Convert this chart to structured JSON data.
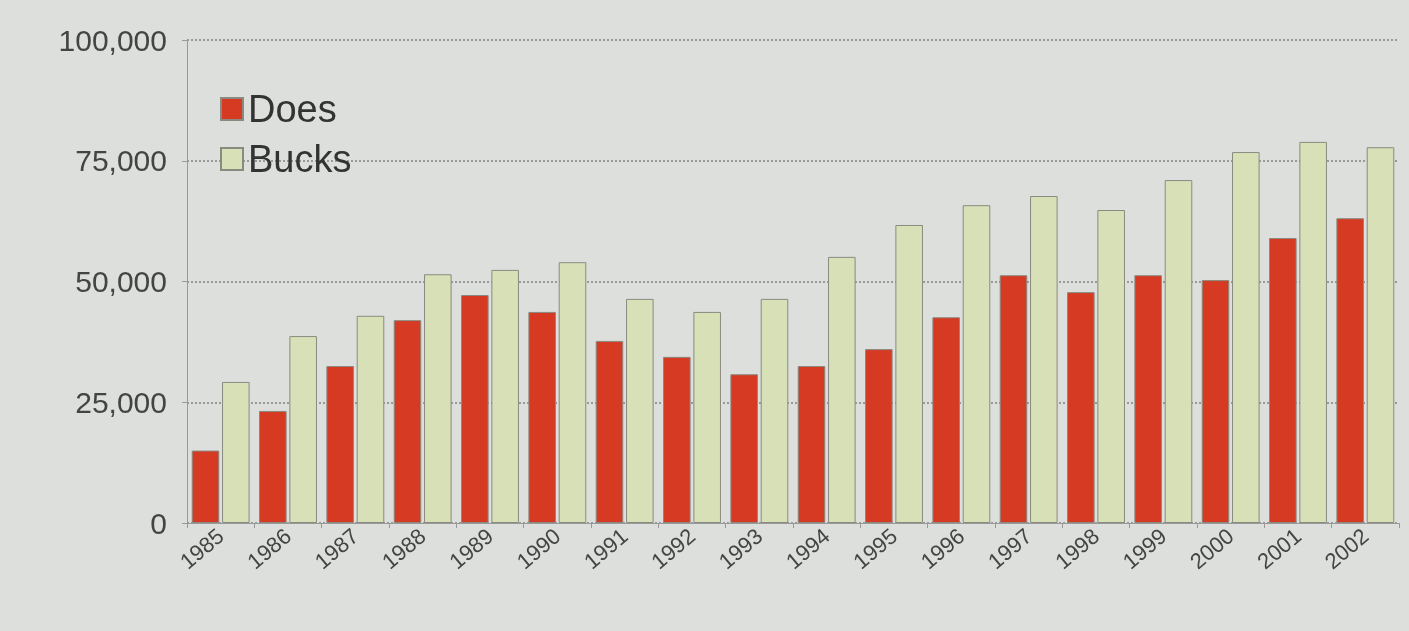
{
  "chart_data": {
    "type": "bar",
    "categories": [
      "1985",
      "1986",
      "1987",
      "1988",
      "1989",
      "1990",
      "1991",
      "1992",
      "1993",
      "1994",
      "1995",
      "1996",
      "1997",
      "1998",
      "1999",
      "2000",
      "2001",
      "2002"
    ],
    "series": [
      {
        "name": "Does",
        "color": "#d63a22",
        "values": [
          15000,
          23200,
          32500,
          42000,
          47200,
          43700,
          37700,
          34400,
          30800,
          32500,
          36000,
          42600,
          51300,
          47800,
          51300,
          50300,
          59000,
          63100
        ]
      },
      {
        "name": "Bucks",
        "color": "#d8e0b8",
        "values": [
          29200,
          38700,
          42900,
          51500,
          52400,
          54000,
          46400,
          43700,
          46400,
          55100,
          61700,
          65800,
          67700,
          64800,
          71000,
          76800,
          78900,
          77800
        ]
      }
    ],
    "ylim": [
      0,
      100000
    ],
    "yticks": [
      0,
      {
        "value": 25000,
        "label": "25,000"
      },
      {
        "value": 50000,
        "label": "50,000"
      },
      {
        "value": 75000,
        "label": "75,000"
      },
      {
        "value": 100000,
        "label": "100,000"
      }
    ],
    "grid": "y",
    "legend": "top left"
  }
}
